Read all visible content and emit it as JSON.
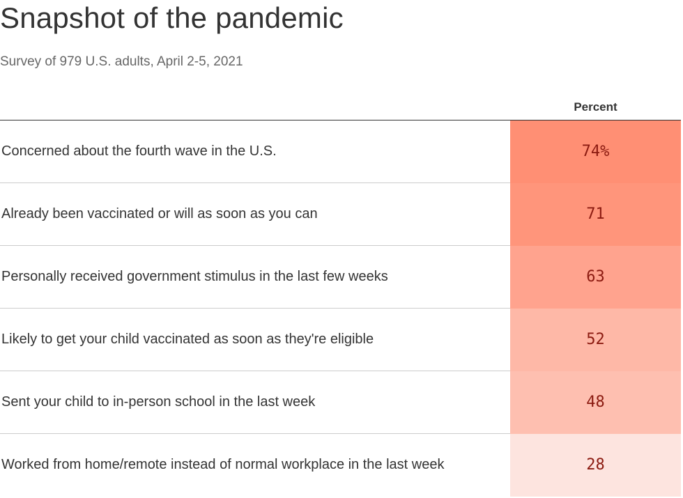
{
  "header": {
    "title": "Snapshot of the pandemic",
    "subtitle": "Survey of 979 U.S. adults, April 2-5, 2021"
  },
  "colors": {
    "cell_max": "#ff8f74",
    "cell_min": "#fde4df",
    "value_text": "#8b1a10"
  },
  "chart_data": {
    "type": "table",
    "title": "Snapshot of the pandemic",
    "subtitle": "Survey of 979 U.S. adults, April 2-5, 2021",
    "column_header": "Percent",
    "rows": [
      {
        "label": "Concerned about the fourth wave in the U.S.",
        "value": 74,
        "display": "74%"
      },
      {
        "label": "Already been vaccinated or will as soon as you can",
        "value": 71,
        "display": "71"
      },
      {
        "label": "Personally received government stimulus in the last few weeks",
        "value": 63,
        "display": "63"
      },
      {
        "label": "Likely to get your child vaccinated as soon as they're eligible",
        "value": 52,
        "display": "52"
      },
      {
        "label": "Sent your child to in-person school in the last week",
        "value": 48,
        "display": "48"
      },
      {
        "label": "Worked from home/remote instead of normal workplace in the last week",
        "value": 28,
        "display": "28"
      }
    ]
  }
}
